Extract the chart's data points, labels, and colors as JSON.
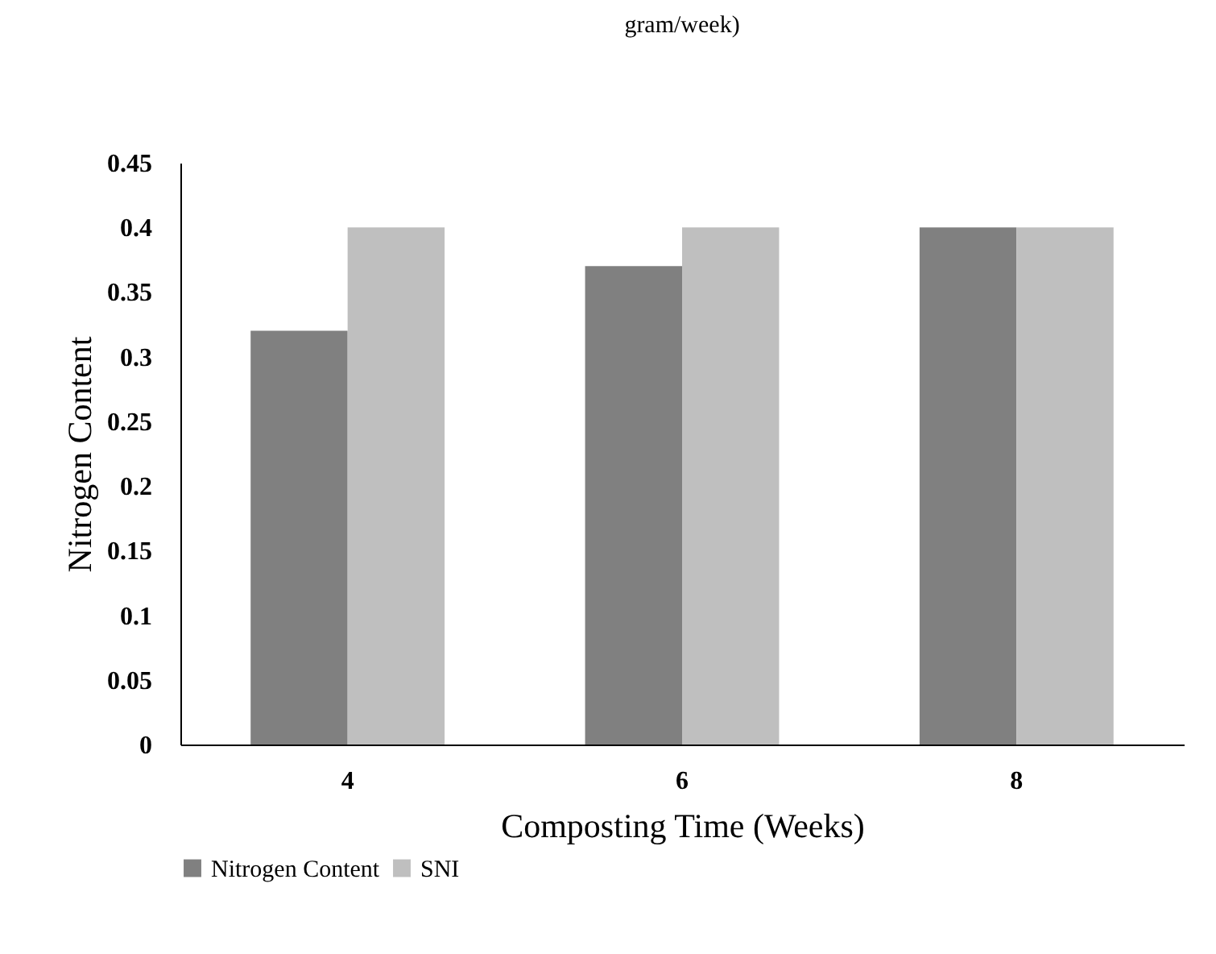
{
  "chart_data": {
    "type": "bar",
    "title": "gram/week)",
    "xlabel": "Composting Time (Weeks)",
    "ylabel": "Nitrogen Content",
    "categories": [
      "4",
      "6",
      "8"
    ],
    "series": [
      {
        "name": "Nitrogen Content",
        "color": "#808080",
        "values": [
          0.32,
          0.37,
          0.4
        ]
      },
      {
        "name": "SNI",
        "color": "#bfbfbf",
        "values": [
          0.4,
          0.4,
          0.4
        ]
      }
    ],
    "ylim": [
      0,
      0.45
    ],
    "yticks": [
      0,
      0.05,
      0.1,
      0.15,
      0.2,
      0.25,
      0.3,
      0.35,
      0.4,
      0.45
    ],
    "grid": false,
    "legend": "bottom"
  }
}
